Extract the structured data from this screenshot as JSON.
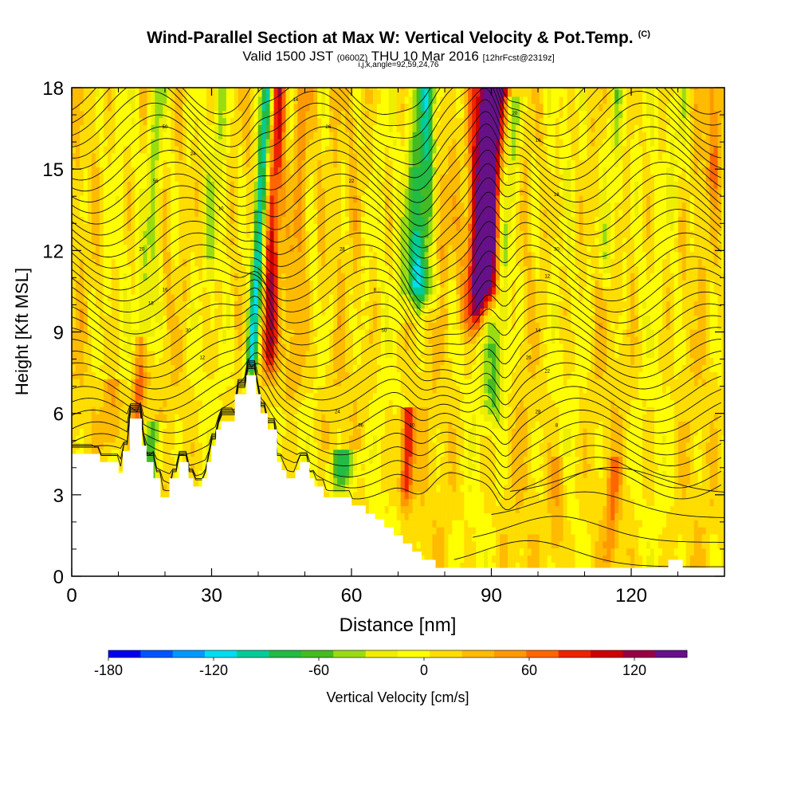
{
  "figure": {
    "title": "Wind-Parallel Section at Max W: Vertical Velocity & Pot.Temp.",
    "title_mark": "(C)",
    "subtitle_main": "Valid 1500 JST",
    "subtitle_utc": "(0600Z)",
    "subtitle_date": "THU 10 Mar 2016",
    "subtitle_fcst": "[12hrFcst@2319z]",
    "subtitle_ijk": "i,j,k,angle=92,59,24,76"
  },
  "chart_data": {
    "type": "heatmap",
    "xlabel": "Distance [nm]",
    "ylabel": "Height [Kft MSL]",
    "xlim": [
      0,
      140
    ],
    "ylim": [
      0,
      18
    ],
    "x_ticks": [
      0,
      30,
      60,
      90,
      120
    ],
    "y_ticks": [
      0,
      3,
      6,
      9,
      12,
      15,
      18
    ],
    "colorbar": {
      "label": "Vertical Velocity [cm/s]",
      "tick_labels": [
        "-180",
        "-120",
        "-60",
        "0",
        "60",
        "120"
      ],
      "tick_values": [
        -180,
        -120,
        -60,
        0,
        60,
        120
      ],
      "range": [
        -180,
        150
      ],
      "step": 15,
      "colors": [
        "#0000ee",
        "#0055ff",
        "#0099ff",
        "#00ddee",
        "#00cc99",
        "#22bb44",
        "#44bb22",
        "#99dd11",
        "#eeee00",
        "#ffff00",
        "#ffdd00",
        "#ffbb00",
        "#ff9900",
        "#ff6600",
        "#ee2200",
        "#cc0000",
        "#990044",
        "#661188"
      ]
    },
    "velocity_features": [
      {
        "x": 40.0,
        "w": 1.0,
        "top": 18,
        "bottom": 7.2,
        "value": -135
      },
      {
        "x": 43.0,
        "w": 1.3,
        "top": 18,
        "bottom": 7.5,
        "value": 95
      },
      {
        "x": 48.5,
        "w": 1.5,
        "top": 18,
        "bottom": 6.5,
        "value": 45
      },
      {
        "x": 75.0,
        "w": 2.4,
        "top": 18,
        "bottom": 10.0,
        "value": -130
      },
      {
        "x": 78.0,
        "w": 2.0,
        "top": 18,
        "bottom": 11.0,
        "value": 60
      },
      {
        "x": 89.5,
        "w": 1.8,
        "top": 18,
        "bottom": 10.0,
        "value": 150
      },
      {
        "x": 87.0,
        "w": 2.0,
        "top": 18,
        "bottom": 9.0,
        "value": 100
      },
      {
        "x": 92.5,
        "w": 1.8,
        "top": 17.5,
        "bottom": 5.5,
        "value": -60
      },
      {
        "x": 17.0,
        "w": 1.5,
        "top": 18,
        "bottom": 8.0,
        "value": -50
      },
      {
        "x": 30.0,
        "w": 1.5,
        "top": 18,
        "bottom": 11.0,
        "value": -25
      },
      {
        "x": 115.0,
        "w": 1.5,
        "top": 18,
        "bottom": 11.0,
        "value": -40
      },
      {
        "x": 129.0,
        "w": 1.3,
        "top": 18,
        "bottom": 13.0,
        "value": -30
      },
      {
        "x": 15.5,
        "w": 1.0,
        "top": 8.5,
        "bottom": 5.0,
        "value": 60
      },
      {
        "x": 20.0,
        "w": 1.5,
        "top": 5.5,
        "bottom": 3.0,
        "value": -70
      },
      {
        "x": 61.0,
        "w": 2.2,
        "top": 4.5,
        "bottom": 3.0,
        "value": -90
      },
      {
        "x": 73.5,
        "w": 1.0,
        "top": 6.0,
        "bottom": 2.6,
        "value": 100
      },
      {
        "x": 10.0,
        "w": 1.5,
        "top": 7.0,
        "bottom": 4.5,
        "value": 45
      },
      {
        "x": 106.0,
        "w": 1.2,
        "top": 4.0,
        "bottom": 0.5,
        "value": 40
      },
      {
        "x": 118.0,
        "w": 1.0,
        "top": 4.0,
        "bottom": 0.5,
        "value": 40
      },
      {
        "x": 137.0,
        "w": 1.5,
        "top": 18,
        "bottom": 14.0,
        "value": 40
      }
    ],
    "terrain": [
      {
        "x": 0,
        "h": 4.5
      },
      {
        "x": 6,
        "h": 4.5
      },
      {
        "x": 6,
        "h": 4.2
      },
      {
        "x": 10,
        "h": 4.2
      },
      {
        "x": 10,
        "h": 3.8
      },
      {
        "x": 11,
        "h": 3.8
      },
      {
        "x": 11,
        "h": 4.6
      },
      {
        "x": 12.5,
        "h": 4.6
      },
      {
        "x": 12.5,
        "h": 5.8
      },
      {
        "x": 15,
        "h": 5.8
      },
      {
        "x": 15,
        "h": 4.8
      },
      {
        "x": 16,
        "h": 4.8
      },
      {
        "x": 16,
        "h": 4.2
      },
      {
        "x": 17.5,
        "h": 4.2
      },
      {
        "x": 17.5,
        "h": 3.6
      },
      {
        "x": 19,
        "h": 3.6
      },
      {
        "x": 19,
        "h": 2.9
      },
      {
        "x": 21,
        "h": 2.9
      },
      {
        "x": 21,
        "h": 3.6
      },
      {
        "x": 23,
        "h": 3.6
      },
      {
        "x": 23,
        "h": 4.2
      },
      {
        "x": 25,
        "h": 4.2
      },
      {
        "x": 25,
        "h": 3.6
      },
      {
        "x": 26,
        "h": 3.6
      },
      {
        "x": 26,
        "h": 3.3
      },
      {
        "x": 28,
        "h": 3.3
      },
      {
        "x": 28,
        "h": 3.6
      },
      {
        "x": 29,
        "h": 3.6
      },
      {
        "x": 29,
        "h": 4.2
      },
      {
        "x": 30,
        "h": 4.2
      },
      {
        "x": 30,
        "h": 4.8
      },
      {
        "x": 31,
        "h": 4.8
      },
      {
        "x": 31,
        "h": 5.4
      },
      {
        "x": 32,
        "h": 5.4
      },
      {
        "x": 32,
        "h": 5.7
      },
      {
        "x": 35,
        "h": 5.7
      },
      {
        "x": 35,
        "h": 6.7
      },
      {
        "x": 37.5,
        "h": 6.7
      },
      {
        "x": 37.5,
        "h": 7.4
      },
      {
        "x": 39.5,
        "h": 7.4
      },
      {
        "x": 39.5,
        "h": 6.7
      },
      {
        "x": 40.5,
        "h": 6.7
      },
      {
        "x": 40.5,
        "h": 6.0
      },
      {
        "x": 42,
        "h": 6.0
      },
      {
        "x": 42,
        "h": 5.4
      },
      {
        "x": 44,
        "h": 5.4
      },
      {
        "x": 44,
        "h": 4.2
      },
      {
        "x": 45,
        "h": 4.2
      },
      {
        "x": 45,
        "h": 3.9
      },
      {
        "x": 46,
        "h": 3.9
      },
      {
        "x": 46,
        "h": 3.6
      },
      {
        "x": 48,
        "h": 3.6
      },
      {
        "x": 48,
        "h": 3.9
      },
      {
        "x": 49,
        "h": 3.9
      },
      {
        "x": 49,
        "h": 4.2
      },
      {
        "x": 51,
        "h": 4.2
      },
      {
        "x": 51,
        "h": 3.6
      },
      {
        "x": 52,
        "h": 3.6
      },
      {
        "x": 52,
        "h": 3.3
      },
      {
        "x": 54,
        "h": 3.3
      },
      {
        "x": 54,
        "h": 2.9
      },
      {
        "x": 60,
        "h": 2.9
      },
      {
        "x": 60,
        "h": 2.6
      },
      {
        "x": 63,
        "h": 2.6
      },
      {
        "x": 63,
        "h": 2.3
      },
      {
        "x": 65,
        "h": 2.3
      },
      {
        "x": 65,
        "h": 2.1
      },
      {
        "x": 67,
        "h": 2.1
      },
      {
        "x": 67,
        "h": 1.8
      },
      {
        "x": 69,
        "h": 1.8
      },
      {
        "x": 69,
        "h": 1.5
      },
      {
        "x": 71,
        "h": 1.5
      },
      {
        "x": 71,
        "h": 1.2
      },
      {
        "x": 73,
        "h": 1.2
      },
      {
        "x": 73,
        "h": 0.9
      },
      {
        "x": 75,
        "h": 0.9
      },
      {
        "x": 75,
        "h": 0.6
      },
      {
        "x": 78,
        "h": 0.6
      },
      {
        "x": 78,
        "h": 0.3
      },
      {
        "x": 128,
        "h": 0.3
      },
      {
        "x": 128,
        "h": 0.6
      },
      {
        "x": 131,
        "h": 0.6
      },
      {
        "x": 131,
        "h": 0.3
      },
      {
        "x": 140,
        "h": 0.3
      }
    ],
    "isentrope_labels": [
      "50",
      "24",
      "56",
      "10",
      "20",
      "16",
      "18",
      "30",
      "12",
      "14",
      "26",
      "22",
      "28",
      "8"
    ]
  }
}
